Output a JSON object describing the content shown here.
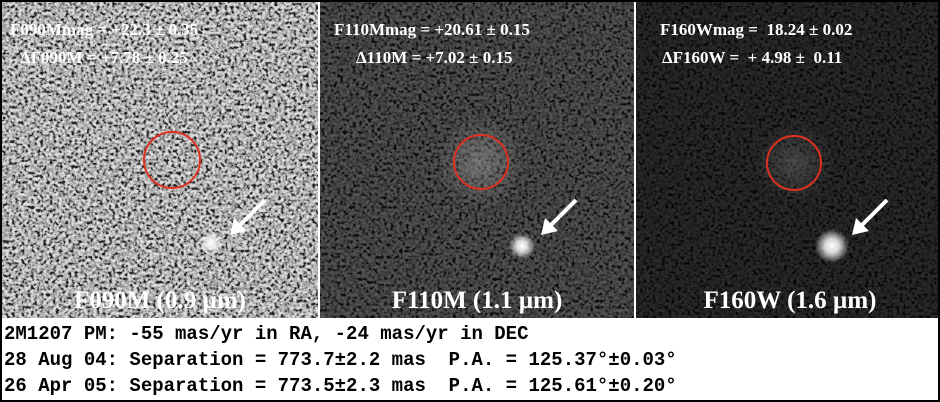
{
  "panels": [
    {
      "header": [
        "F090Mmag = +22.3 ± 0.35",
        "ΔF090M = +7.78 ± 0.25"
      ],
      "label": "F090M (0.9 µm)"
    },
    {
      "header": [
        "F110Mmag = +20.61 ± 0.15",
        "Δ110M = +7.02 ± 0.15"
      ],
      "label": "F110M (1.1 µm)"
    },
    {
      "header": [
        "F160Wmag =  18.24 ± 0.02",
        "ΔF160W =  + 4.98 ±  0.11"
      ],
      "label": "F160W (1.6 µm)"
    }
  ],
  "caption": [
    "2M1207 PM: -55 mas/yr in RA, -24 mas/yr in DEC",
    "28 Aug 04: Separation = 773.7±2.2 mas  P.A. = 125.37°±0.03°",
    "26 Apr 05: Separation = 773.5±2.3 mas  P.A. = 125.61°±0.20°"
  ]
}
